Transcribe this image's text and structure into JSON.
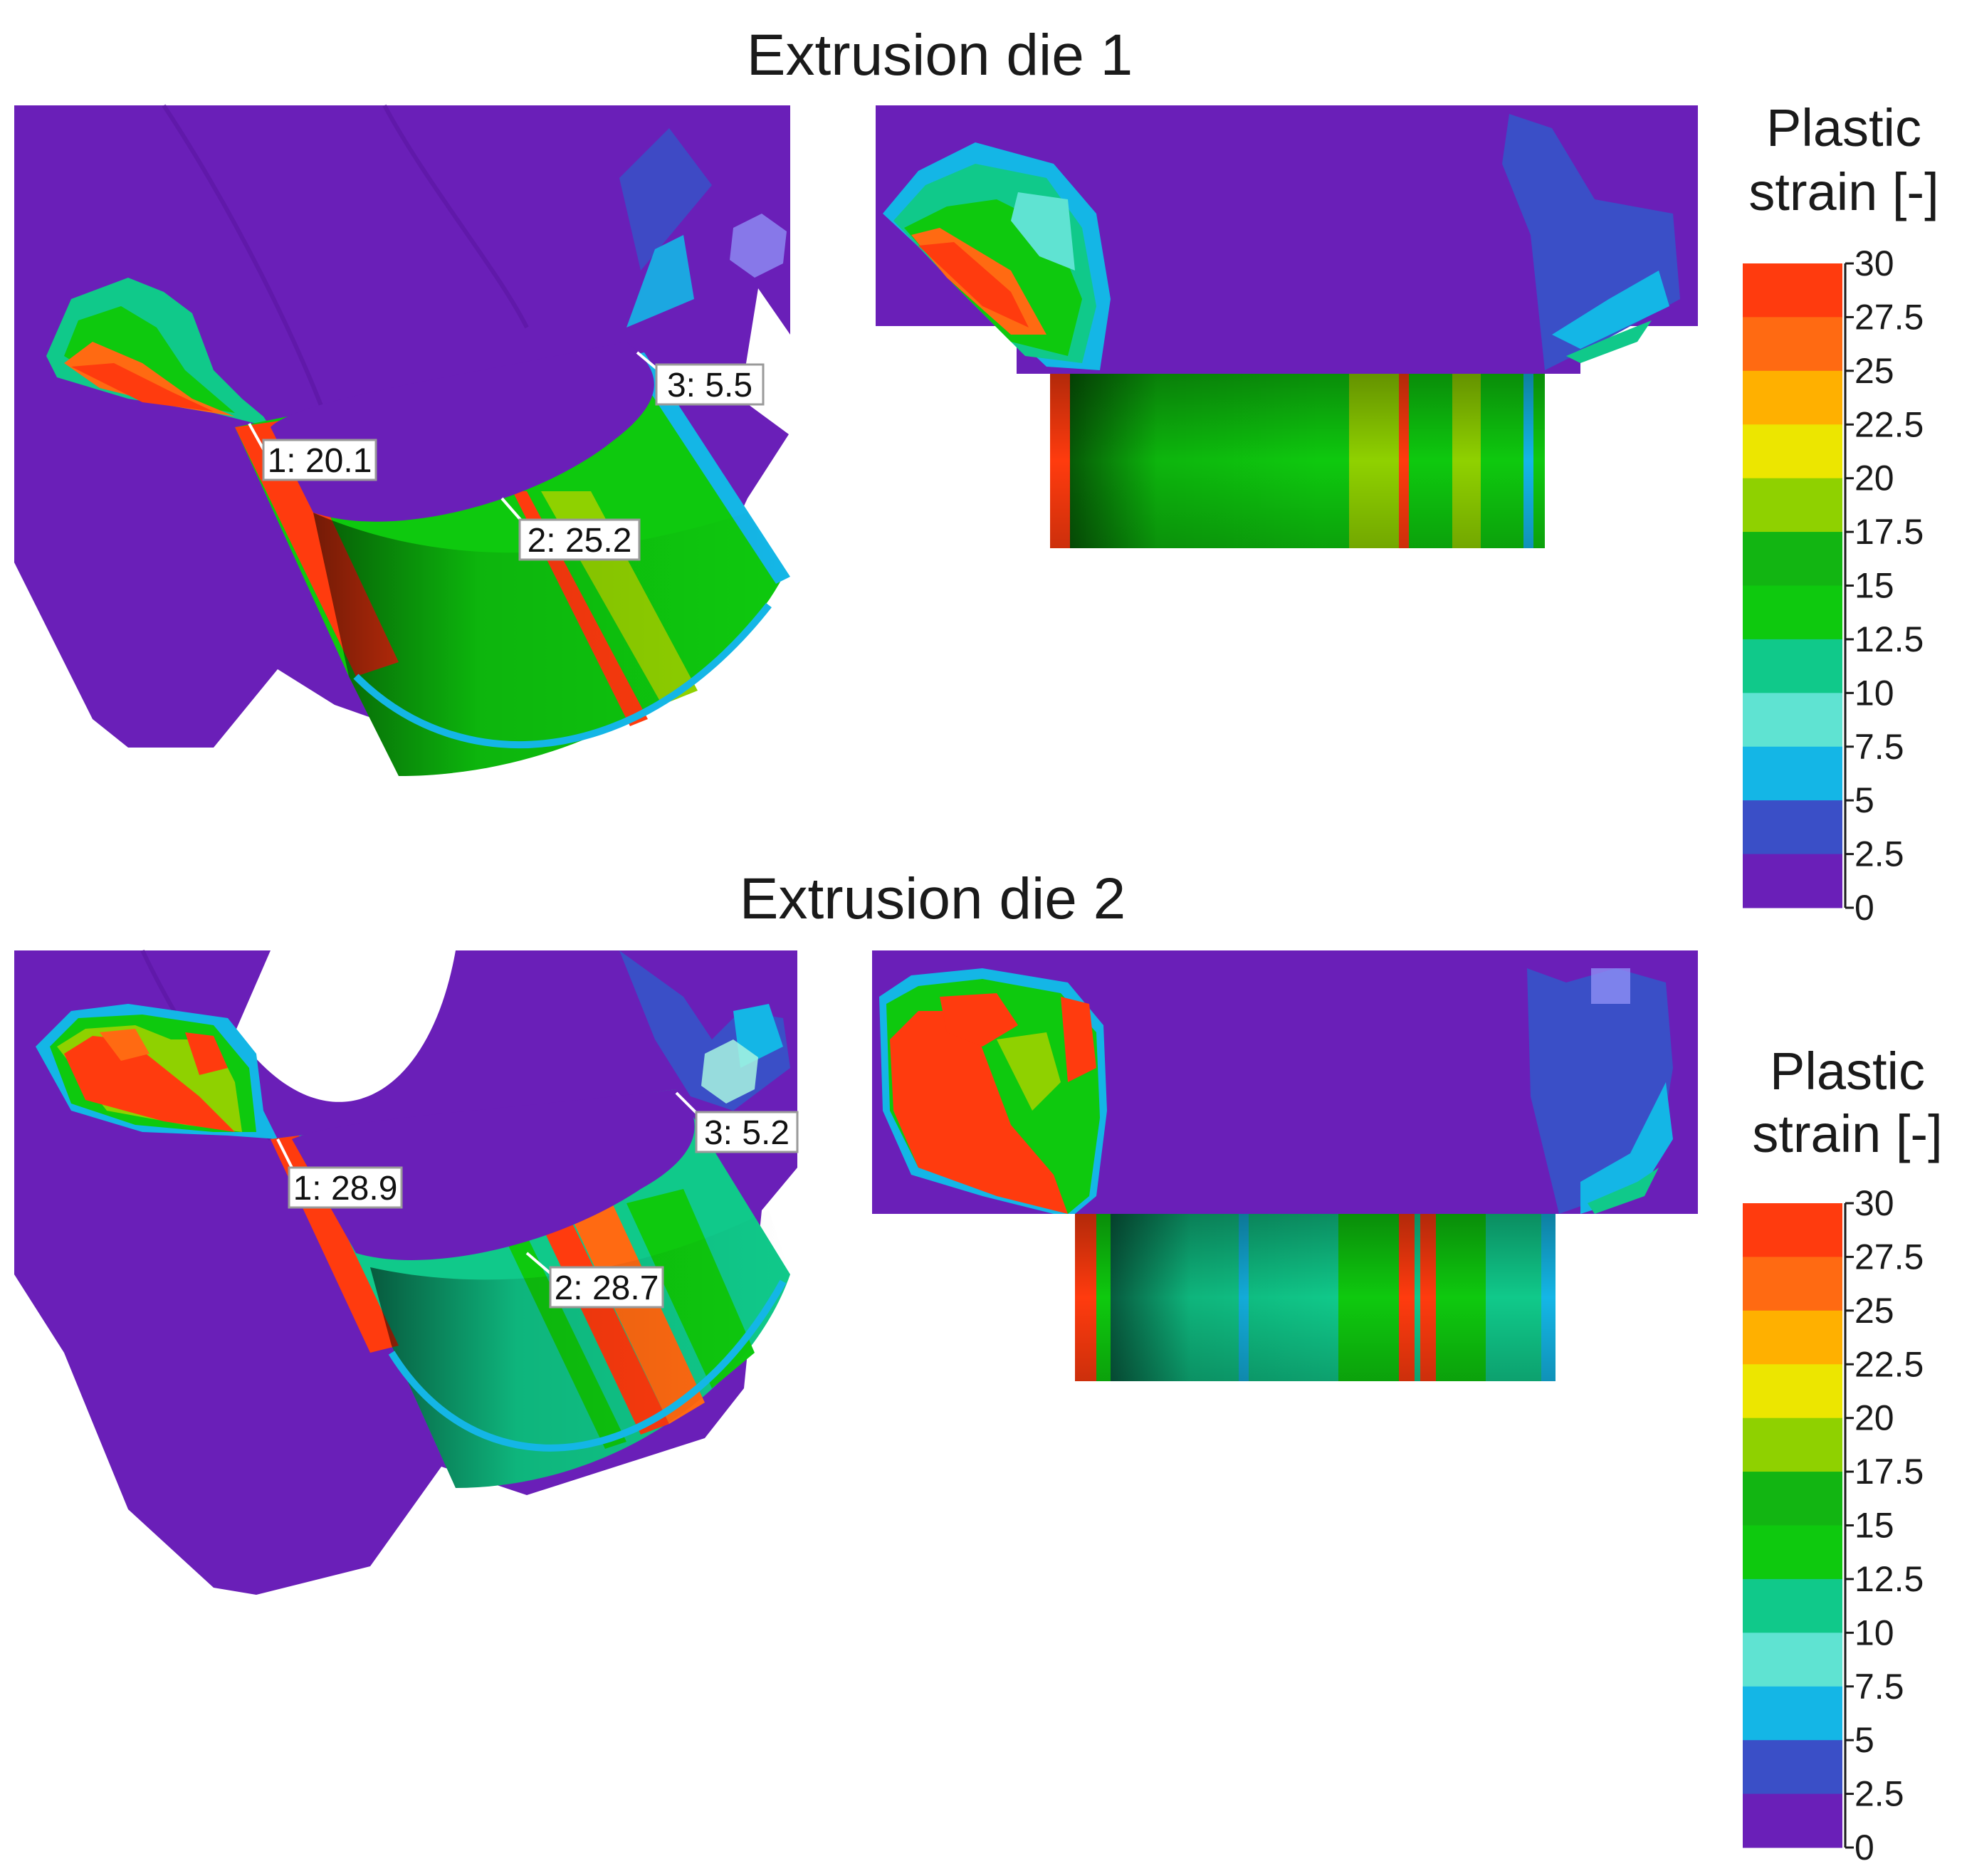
{
  "figure": {
    "panels": [
      {
        "title": "Extrusion die 1",
        "probes": [
          {
            "label": "1: 20.1"
          },
          {
            "label": "2: 25.2"
          },
          {
            "label": "3: 5.5"
          }
        ]
      },
      {
        "title": "Extrusion die 2",
        "probes": [
          {
            "label": "1: 28.9"
          },
          {
            "label": "2: 28.7"
          },
          {
            "label": "3: 5.2"
          }
        ]
      }
    ],
    "legend": {
      "title_line1": "Plastic",
      "title_line2": "strain [-]",
      "ticks": [
        "30",
        "27.5",
        "25",
        "22.5",
        "20",
        "17.5",
        "15",
        "12.5",
        "10",
        "7.5",
        "5",
        "2.5",
        "0"
      ],
      "band_colors": [
        "#ff3b0e",
        "#ff6a12",
        "#ffb000",
        "#ece600",
        "#8fd100",
        "#12b512",
        "#0ec90e",
        "#10c98a",
        "#5fe3d2",
        "#14b6e6",
        "#3a4fc7",
        "#6a1fb8"
      ]
    },
    "colors": {
      "background_purple": "#6a1fb8",
      "blue": "#3a4fc7",
      "cyan": "#14b6e6",
      "teal": "#10c98a",
      "green": "#0ec90e",
      "lime": "#8fd100",
      "yellow": "#ece600",
      "orange": "#ffb000",
      "red": "#ff3b0e"
    }
  }
}
